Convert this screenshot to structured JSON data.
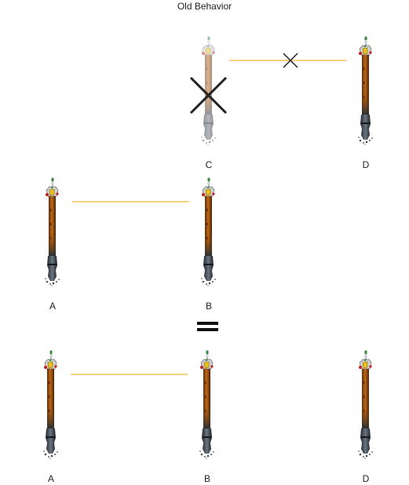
{
  "diagram": {
    "title": "Old Behavior",
    "colors": {
      "link": "#f0a500",
      "cross": "#222222",
      "label": "#222222",
      "pole_wood": "#8b4a10",
      "pole_dark": "#3a4148",
      "tip_yellow": "#e8c020",
      "tip_green": "#3a8a3a",
      "tip_red": "#c02020"
    },
    "rows": [
      {
        "id": "top",
        "nodes": [
          {
            "label": "C",
            "state": "removed"
          },
          {
            "label": "D",
            "state": "normal"
          }
        ],
        "link": {
          "from": "C",
          "to": "D",
          "state": "broken"
        }
      },
      {
        "id": "middle",
        "nodes": [
          {
            "label": "A",
            "state": "normal"
          },
          {
            "label": "B",
            "state": "normal"
          }
        ],
        "link": {
          "from": "A",
          "to": "B",
          "state": "connected"
        }
      },
      {
        "id": "result",
        "nodes": [
          {
            "label": "A",
            "state": "normal"
          },
          {
            "label": "B",
            "state": "normal"
          },
          {
            "label": "D",
            "state": "normal"
          }
        ],
        "link": {
          "from": "A",
          "to": "B",
          "state": "connected"
        }
      }
    ],
    "equals_symbol": "equals-icon"
  }
}
